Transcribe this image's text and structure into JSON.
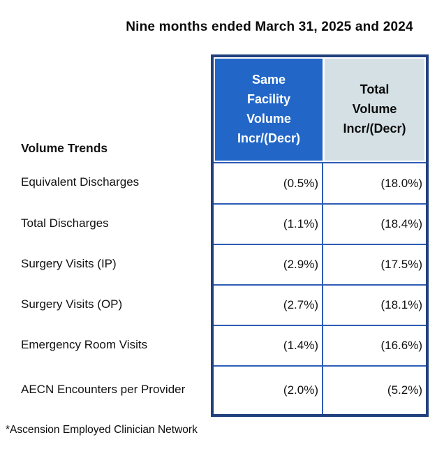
{
  "title": "Nine months ended March 31, 2025 and 2024",
  "table": {
    "caption": "Volume Trends",
    "columns": [
      {
        "label": "Same Facility Volume Incr/(Decr)",
        "lines": [
          "Same",
          "Facility",
          "Volume",
          "Incr/(Decr)"
        ]
      },
      {
        "label": "Total Volume Incr/(Decr)",
        "lines": [
          "Total",
          "Volume",
          "Incr/(Decr)"
        ]
      }
    ],
    "rows": [
      {
        "label": "Equivalent Discharges",
        "same_facility": "(0.5%)",
        "total": "(18.0%)"
      },
      {
        "label": "Total Discharges",
        "same_facility": "(1.1%)",
        "total": "(18.4%)"
      },
      {
        "label": "Surgery Visits (IP)",
        "same_facility": "(2.9%)",
        "total": "(17.5%)"
      },
      {
        "label": "Surgery Visits (OP)",
        "same_facility": "(2.7%)",
        "total": "(18.1%)"
      },
      {
        "label": "Emergency Room Visits",
        "same_facility": "(1.4%)",
        "total": "(16.6%)"
      },
      {
        "label": "AECN Encounters per Provider",
        "same_facility": "(2.0%)",
        "total": "(5.2%)"
      }
    ]
  },
  "footnote": "*Ascension Employed Clinician Network",
  "colors": {
    "header_blue": "#2267c8",
    "header_light": "#d4e0e4",
    "outer_border_navy": "#20407e",
    "grid_blue": "#2e5cb5",
    "text": "#111111"
  }
}
